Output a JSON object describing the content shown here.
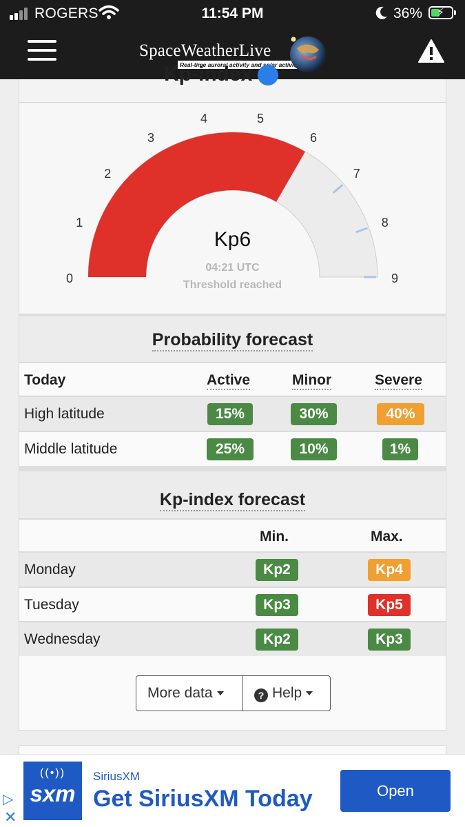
{
  "status_bar": {
    "carrier": "ROGERS",
    "time": "11:54 PM",
    "battery_percent": "36%"
  },
  "header": {
    "brand": "SpaceWeatherLive",
    "tagline": "Real-time auroral activity and solar activity",
    "icons": [
      "hamburger-menu-icon",
      "warning-icon"
    ]
  },
  "kp_index": {
    "title": "Kp-index",
    "scale_labels": [
      "0",
      "1",
      "2",
      "3",
      "4",
      "5",
      "6",
      "7",
      "8",
      "9"
    ],
    "current_value": 6,
    "max_value": 9,
    "display": "Kp6",
    "time": "04:21 UTC",
    "status": "Threshold reached",
    "colors": {
      "filled": "#e0302a",
      "empty": "#ececec",
      "tick": "#a9c4e8"
    }
  },
  "probability_forecast": {
    "title": "Probability forecast",
    "columns": [
      "Today",
      "Active",
      "Minor",
      "Severe"
    ],
    "rows": [
      {
        "label": "High latitude",
        "values": [
          "15%",
          "30%",
          "40%"
        ],
        "colors": [
          "green",
          "green",
          "orange"
        ]
      },
      {
        "label": "Middle latitude",
        "values": [
          "25%",
          "10%",
          "1%"
        ],
        "colors": [
          "green",
          "green",
          "green"
        ]
      }
    ]
  },
  "kp_forecast": {
    "title": "Kp-index forecast",
    "columns": [
      "Min.",
      "Max."
    ],
    "rows": [
      {
        "day": "Monday",
        "min": "Kp2",
        "max": "Kp4",
        "min_color": "green",
        "max_color": "orange"
      },
      {
        "day": "Tuesday",
        "min": "Kp3",
        "max": "Kp5",
        "min_color": "green",
        "max_color": "red"
      },
      {
        "day": "Wednesday",
        "min": "Kp2",
        "max": "Kp3",
        "min_color": "green",
        "max_color": "green"
      }
    ]
  },
  "buttons": {
    "more_data": "More data",
    "help": "Help"
  },
  "ad": {
    "logo_text": "sxm",
    "brand": "SiriusXM",
    "headline": "Get SiriusXM Today",
    "cta": "Open"
  },
  "colors": {
    "green": "#4a8a45",
    "orange": "#f0a030",
    "red": "#e0302a",
    "header_bg": "#1c1c1c",
    "ad_blue": "#1f5ac4"
  }
}
